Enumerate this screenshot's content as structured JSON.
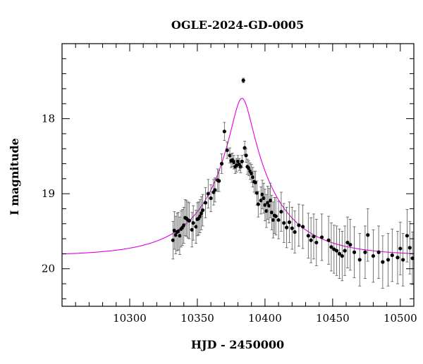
{
  "chart_data": {
    "type": "scatter",
    "title": "OGLE-2024-GD-0005",
    "xlabel": "HJD - 2450000",
    "ylabel": "I magnitude",
    "xlim": [
      10250,
      10510
    ],
    "ylim": [
      20.5,
      17.0
    ],
    "y_inverted": true,
    "x_ticks": [
      10300,
      10350,
      10400,
      10450,
      10500
    ],
    "y_ticks": [
      18,
      19,
      20
    ],
    "grid": false,
    "colors": {
      "points": "#000000",
      "model": "#e000e0",
      "frame": "#000000"
    },
    "model": {
      "type": "point-lens microlensing fit",
      "t0": 10383,
      "tE": 50,
      "u0": 0.1455,
      "baseline_mag": 19.83
    },
    "series": [
      {
        "x": [
          10332,
          10333,
          10334,
          10335,
          10336,
          10337,
          10338,
          10339,
          10340,
          10341,
          10342,
          10343,
          10344,
          10346,
          10347,
          10349,
          10350,
          10351,
          10352,
          10353,
          10354,
          10356,
          10358,
          10360,
          10362,
          10363,
          10365,
          10366,
          10368,
          10370,
          10372,
          10374,
          10375,
          10376,
          10377,
          10378,
          10379,
          10380,
          10381,
          10382,
          10383,
          10384,
          10385,
          10386,
          10387,
          10388,
          10389,
          10390,
          10391,
          10392,
          10393,
          10394,
          10395,
          10397,
          10398,
          10399,
          10400,
          10401,
          10402,
          10403,
          10404,
          10405,
          10406,
          10407,
          10408,
          10410,
          10412,
          10414,
          10416,
          10418,
          10420,
          10422,
          10425,
          10428,
          10432,
          10434,
          10436,
          10438,
          10442,
          10447,
          10449,
          10451,
          10453,
          10455,
          10457,
          10459,
          10461,
          10463,
          10466,
          10470,
          10474,
          10476,
          10480,
          10484,
          10487,
          10491,
          10494,
          10498,
          10500,
          10502,
          10505,
          10507,
          10509
        ],
        "y": [
          19.62,
          19.49,
          19.55,
          19.51,
          19.5,
          19.56,
          19.47,
          19.45,
          19.42,
          19.32,
          19.33,
          19.35,
          19.36,
          19.48,
          19.39,
          19.44,
          19.34,
          19.33,
          19.3,
          19.26,
          19.22,
          19.12,
          19.0,
          19.06,
          18.98,
          18.95,
          18.82,
          18.83,
          18.6,
          18.17,
          18.42,
          18.49,
          18.56,
          18.55,
          18.58,
          18.64,
          18.62,
          18.57,
          18.61,
          18.64,
          18.57,
          17.49,
          18.39,
          18.49,
          18.64,
          18.66,
          18.7,
          18.73,
          18.78,
          18.84,
          18.85,
          18.99,
          19.14,
          19.09,
          19.01,
          19.06,
          19.15,
          19.23,
          19.12,
          19.16,
          19.09,
          19.25,
          19.35,
          19.29,
          19.3,
          19.35,
          19.24,
          19.39,
          19.45,
          19.38,
          19.46,
          19.51,
          19.42,
          19.44,
          19.56,
          19.62,
          19.57,
          19.65,
          19.58,
          19.62,
          19.71,
          19.74,
          19.76,
          19.8,
          19.83,
          19.76,
          19.65,
          19.68,
          19.78,
          19.88,
          19.78,
          19.55,
          19.83,
          19.78,
          19.91,
          19.88,
          19.82,
          19.85,
          19.73,
          19.88,
          19.56,
          19.72,
          19.86
        ],
        "err": [
          0.25,
          0.25,
          0.25,
          0.25,
          0.25,
          0.25,
          0.24,
          0.24,
          0.24,
          0.24,
          0.24,
          0.24,
          0.24,
          0.23,
          0.23,
          0.22,
          0.22,
          0.22,
          0.22,
          0.22,
          0.21,
          0.2,
          0.19,
          0.18,
          0.17,
          0.16,
          0.15,
          0.14,
          0.13,
          0.12,
          0.11,
          0.1,
          0.09,
          0.09,
          0.09,
          0.09,
          0.09,
          0.08,
          0.08,
          0.08,
          0.08,
          0.03,
          0.09,
          0.09,
          0.1,
          0.1,
          0.11,
          0.12,
          0.13,
          0.14,
          0.15,
          0.16,
          0.17,
          0.18,
          0.19,
          0.2,
          0.21,
          0.22,
          0.22,
          0.23,
          0.23,
          0.23,
          0.24,
          0.24,
          0.25,
          0.25,
          0.26,
          0.26,
          0.27,
          0.27,
          0.28,
          0.28,
          0.28,
          0.29,
          0.3,
          0.3,
          0.3,
          0.31,
          0.31,
          0.32,
          0.32,
          0.32,
          0.33,
          0.33,
          0.33,
          0.33,
          0.34,
          0.34,
          0.34,
          0.35,
          0.35,
          0.35,
          0.35,
          0.35,
          0.35,
          0.35,
          0.35,
          0.35,
          0.35,
          0.35,
          0.35,
          0.35,
          0.35
        ]
      }
    ]
  }
}
